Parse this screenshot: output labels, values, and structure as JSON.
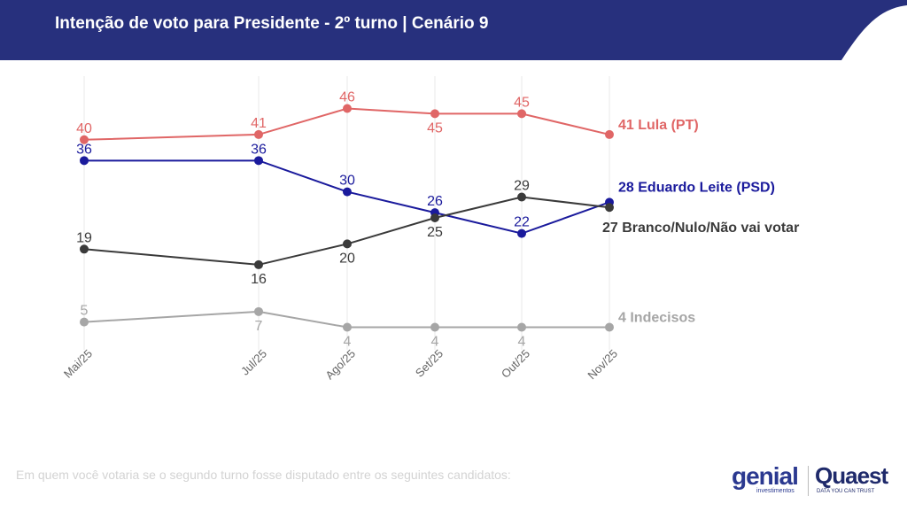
{
  "title": "Intenção de voto para Presidente - 2º turno | Cenário 9",
  "footnote": "Em quem você votaria se o segundo turno fosse disputado entre os seguintes candidatos:",
  "logos": {
    "genial": "genial",
    "genial_sub": "investimentos",
    "quaest": "Quaest",
    "quaest_sub": "DATA YOU CAN TRUST"
  },
  "colors": {
    "header": "#27307d",
    "lula": "#e06666",
    "leite": "#1a1a9c",
    "branco": "#3a3a3a",
    "indecisos": "#a6a6a6",
    "grid": "#e8e8e8"
  },
  "chart_data": {
    "type": "line",
    "categories": [
      "Mai/25",
      "Jul/25",
      "Ago/25",
      "Set/25",
      "Out/25",
      "Nov/25"
    ],
    "ylim": [
      0,
      50
    ],
    "grid": "vertical",
    "series": [
      {
        "name": "Lula (PT)",
        "end_label": "41 Lula (PT)",
        "color": "#e06666",
        "values": [
          40,
          41,
          46,
          45,
          45,
          41
        ],
        "label_pos": [
          "above",
          "above",
          "above",
          "below",
          "above",
          "none"
        ]
      },
      {
        "name": "Eduardo Leite (PSD)",
        "end_label": "28 Eduardo Leite (PSD)",
        "color": "#1a1a9c",
        "values": [
          36,
          36,
          30,
          26,
          22,
          28
        ],
        "label_pos": [
          "above",
          "above",
          "above",
          "above",
          "above",
          "none"
        ]
      },
      {
        "name": "Branco/Nulo/Não vai votar",
        "end_label": "27 Branco/Nulo/Não vai votar",
        "color": "#3a3a3a",
        "values": [
          19,
          16,
          20,
          25,
          29,
          27
        ],
        "label_pos": [
          "above",
          "below",
          "below",
          "below",
          "above",
          "none"
        ]
      },
      {
        "name": "Indecisos",
        "end_label": "4 Indecisos",
        "color": "#a6a6a6",
        "values": [
          5,
          7,
          4,
          4,
          4,
          4
        ],
        "label_pos": [
          "above",
          "below",
          "below",
          "below",
          "below",
          "none"
        ]
      }
    ]
  }
}
